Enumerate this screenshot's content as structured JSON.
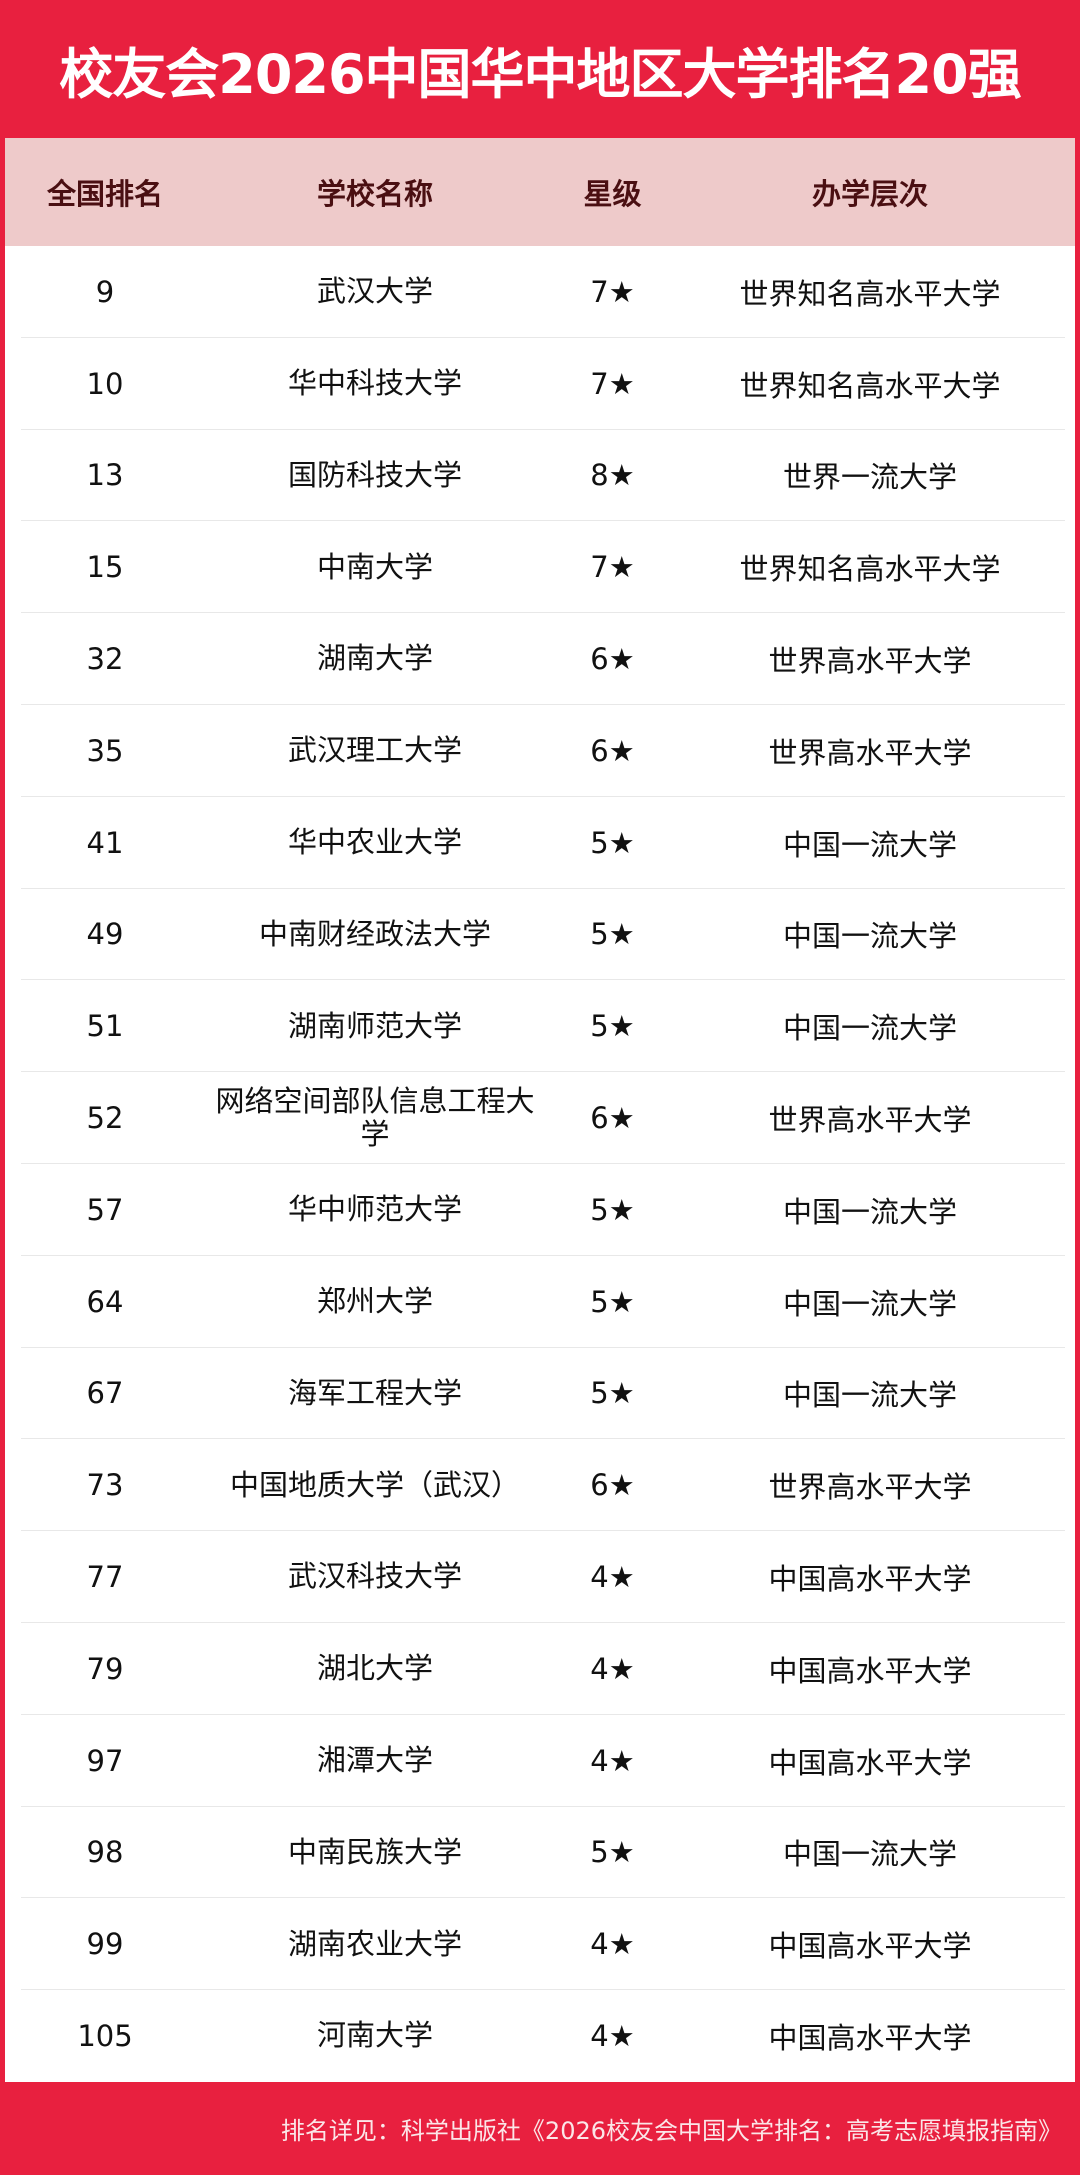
{
  "title": "校友会2026中国华中地区大学排名20强",
  "colors": {
    "brand_red": "#E8203F",
    "header_bg": "#EECACA",
    "header_text": "#4a0f12"
  },
  "table": {
    "headers": [
      "全国排名",
      "学校名称",
      "星级",
      "办学层次"
    ],
    "rows": [
      [
        "9",
        "武汉大学",
        "7★",
        "世界知名高水平大学"
      ],
      [
        "10",
        "华中科技大学",
        "7★",
        "世界知名高水平大学"
      ],
      [
        "13",
        "国防科技大学",
        "8★",
        "世界一流大学"
      ],
      [
        "15",
        "中南大学",
        "7★",
        "世界知名高水平大学"
      ],
      [
        "32",
        "湖南大学",
        "6★",
        "世界高水平大学"
      ],
      [
        "35",
        "武汉理工大学",
        "6★",
        "世界高水平大学"
      ],
      [
        "41",
        "华中农业大学",
        "5★",
        "中国一流大学"
      ],
      [
        "49",
        "中南财经政法大学",
        "5★",
        "中国一流大学"
      ],
      [
        "51",
        "湖南师范大学",
        "5★",
        "中国一流大学"
      ],
      [
        "52",
        "网络空间部队信息工程大学",
        "6★",
        "世界高水平大学"
      ],
      [
        "57",
        "华中师范大学",
        "5★",
        "中国一流大学"
      ],
      [
        "64",
        "郑州大学",
        "5★",
        "中国一流大学"
      ],
      [
        "67",
        "海军工程大学",
        "5★",
        "中国一流大学"
      ],
      [
        "73",
        "中国地质大学（武汉）",
        "6★",
        "世界高水平大学"
      ],
      [
        "77",
        "武汉科技大学",
        "4★",
        "中国高水平大学"
      ],
      [
        "79",
        "湖北大学",
        "4★",
        "中国高水平大学"
      ],
      [
        "97",
        "湘潭大学",
        "4★",
        "中国高水平大学"
      ],
      [
        "98",
        "中南民族大学",
        "5★",
        "中国一流大学"
      ],
      [
        "99",
        "湖南农业大学",
        "4★",
        "中国高水平大学"
      ],
      [
        "105",
        "河南大学",
        "4★",
        "中国高水平大学"
      ]
    ]
  },
  "footer": "排名详见：科学出版社《2026校友会中国大学排名：高考志愿填报指南》"
}
